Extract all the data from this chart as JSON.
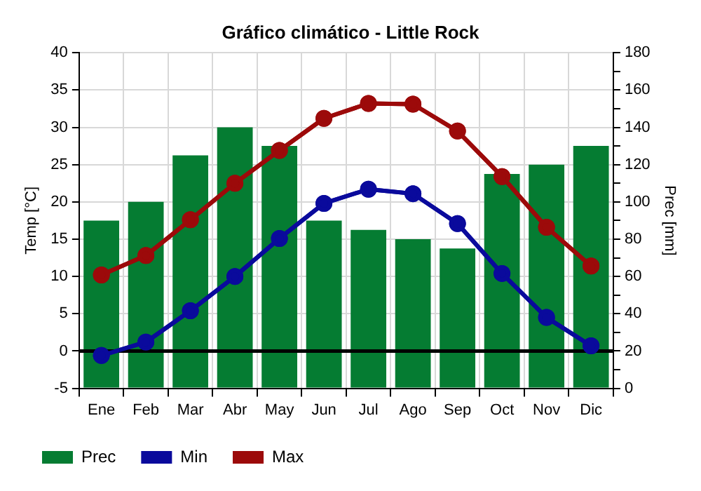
{
  "chart_data": {
    "type": "bar",
    "title": "Gráfico climático - Little Rock",
    "ylabel": "Temp [°C]",
    "y2label": "Prec [mm]",
    "categories": [
      "Ene",
      "Feb",
      "Mar",
      "Abr",
      "May",
      "Jun",
      "Jul",
      "Ago",
      "Sep",
      "Oct",
      "Nov",
      "Dic"
    ],
    "series": [
      {
        "name": "Prec",
        "axis": "y2",
        "color": "#057c32",
        "values": [
          90,
          100,
          125,
          140,
          130,
          90,
          85,
          80,
          75,
          115,
          120,
          130
        ]
      },
      {
        "name": "Min",
        "type": "line",
        "color": "#0a0a9c",
        "values": [
          -0.6,
          1.2,
          5.4,
          10,
          15.1,
          19.8,
          21.7,
          21.1,
          17.1,
          10.4,
          4.5,
          0.7
        ]
      },
      {
        "name": "Max",
        "type": "line",
        "color": "#9c0a0a",
        "values": [
          10.2,
          12.8,
          17.6,
          22.5,
          26.9,
          31.2,
          33.2,
          33.1,
          29.5,
          23.4,
          16.6,
          11.4
        ]
      }
    ],
    "ylim": [
      -5,
      40
    ],
    "yticks": [
      -5,
      0,
      5,
      10,
      15,
      20,
      25,
      30,
      35,
      40
    ],
    "y2lim": [
      0,
      180
    ],
    "y2ticks": [
      0,
      {
        "value": 10,
        "label": null
      },
      20,
      {
        "value": 30,
        "label": null
      },
      40,
      {
        "value": 50,
        "label": null
      },
      60,
      {
        "value": 70,
        "label": null
      },
      80,
      {
        "value": 90,
        "label": null
      },
      100,
      {
        "value": 110,
        "label": null
      },
      120,
      {
        "value": 130,
        "label": null
      },
      140,
      {
        "value": 150,
        "label": null
      },
      160,
      {
        "value": 170,
        "label": null
      },
      180
    ],
    "ref_lines": [
      {
        "axis": "y",
        "value": 0,
        "color": "#000000"
      }
    ],
    "grid": true,
    "legend": "bottom left",
    "marker": "circle",
    "line_style": "solid"
  }
}
